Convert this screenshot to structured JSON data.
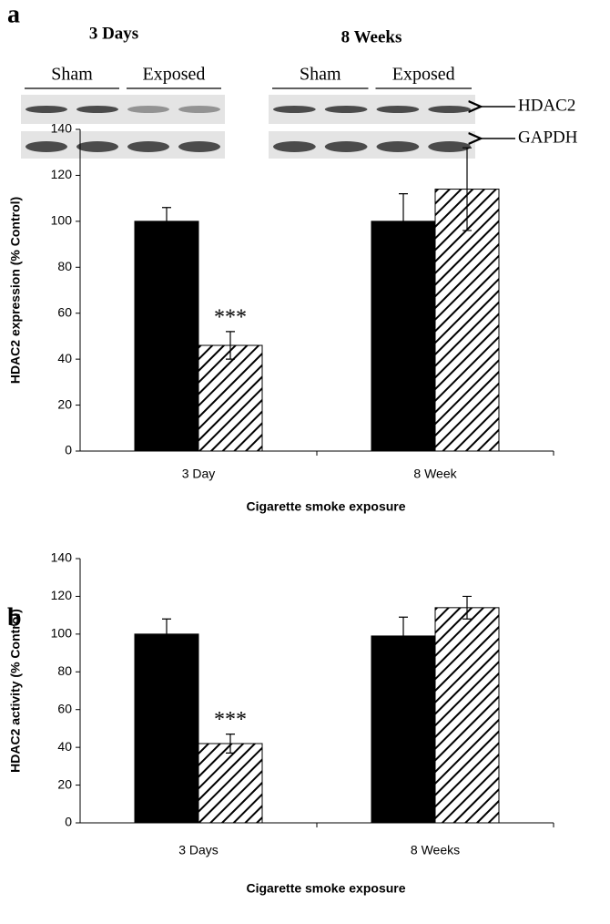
{
  "blot": {
    "groups": [
      {
        "title": "3 Days",
        "lanes": [
          "Sham",
          "Exposed"
        ]
      },
      {
        "title": "8 Weeks",
        "lanes": [
          "Sham",
          "Exposed"
        ]
      }
    ],
    "proteins": [
      "HDAC2",
      "GAPDH"
    ]
  },
  "chart_data": [
    {
      "type": "bar",
      "panel_label": "a",
      "categories": [
        "3 Day",
        "8 Week"
      ],
      "series": [
        {
          "color": "#000000",
          "values": [
            100,
            100
          ],
          "errors": [
            6,
            12
          ]
        },
        {
          "color": "#ffffff",
          "hatch": true,
          "values": [
            46,
            114
          ],
          "errors": [
            6,
            18
          ],
          "significance": [
            "***",
            null
          ]
        }
      ],
      "ylim": [
        0,
        140
      ],
      "yticks": [
        0,
        20,
        40,
        60,
        80,
        100,
        120,
        140
      ],
      "ylabel": "HDAC2 expression (% Control)",
      "xlabel": "Cigarette smoke exposure"
    },
    {
      "type": "bar",
      "panel_label": "b",
      "categories": [
        "3 Days",
        "8 Weeks"
      ],
      "series": [
        {
          "color": "#000000",
          "values": [
            100,
            99
          ],
          "errors": [
            8,
            10
          ]
        },
        {
          "color": "#ffffff",
          "hatch": true,
          "values": [
            42,
            114
          ],
          "errors": [
            5,
            6
          ],
          "significance": [
            "***",
            null
          ]
        }
      ],
      "ylim": [
        0,
        140
      ],
      "yticks": [
        0,
        20,
        40,
        60,
        80,
        100,
        120,
        140
      ],
      "ylabel": "HDAC2 activity (% Control)",
      "xlabel": "Cigarette smoke exposure"
    }
  ]
}
